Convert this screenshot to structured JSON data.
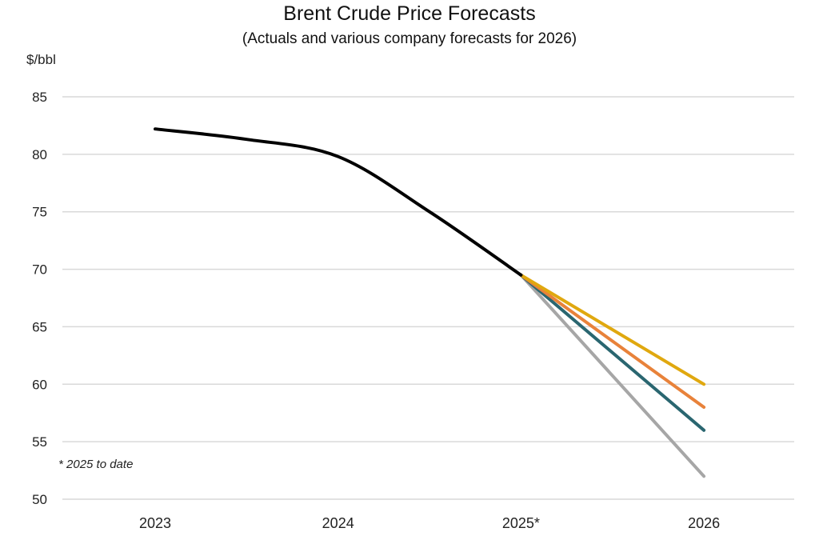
{
  "chart_data": {
    "type": "line",
    "title": "Brent Crude Price Forecasts",
    "subtitle": "(Actuals and various company forecasts for 2026)",
    "ylabel": "$/bbl",
    "ylim": [
      50,
      85
    ],
    "yticks": [
      50,
      55,
      60,
      65,
      70,
      75,
      80,
      85
    ],
    "categories": [
      "2023",
      "2024",
      "2025*",
      "2026"
    ],
    "footnote": "* 2025 to date",
    "grid": true,
    "series": [
      {
        "color": "#000000",
        "points": [
          [
            0,
            82.2
          ],
          [
            0.5,
            81.3
          ],
          [
            1,
            79.8
          ],
          [
            1.5,
            75.0
          ],
          [
            2,
            69.5
          ]
        ]
      },
      {
        "color": "#E0A80F",
        "points": [
          [
            2,
            69.5
          ],
          [
            3,
            60.0
          ]
        ]
      },
      {
        "color": "#E8823A",
        "points": [
          [
            2,
            69.5
          ],
          [
            3,
            58.0
          ]
        ]
      },
      {
        "color": "#2A6670",
        "points": [
          [
            2,
            69.5
          ],
          [
            3,
            56.0
          ]
        ]
      },
      {
        "color": "#A6A6A6",
        "points": [
          [
            2,
            69.5
          ],
          [
            3,
            52.0
          ]
        ]
      }
    ]
  }
}
